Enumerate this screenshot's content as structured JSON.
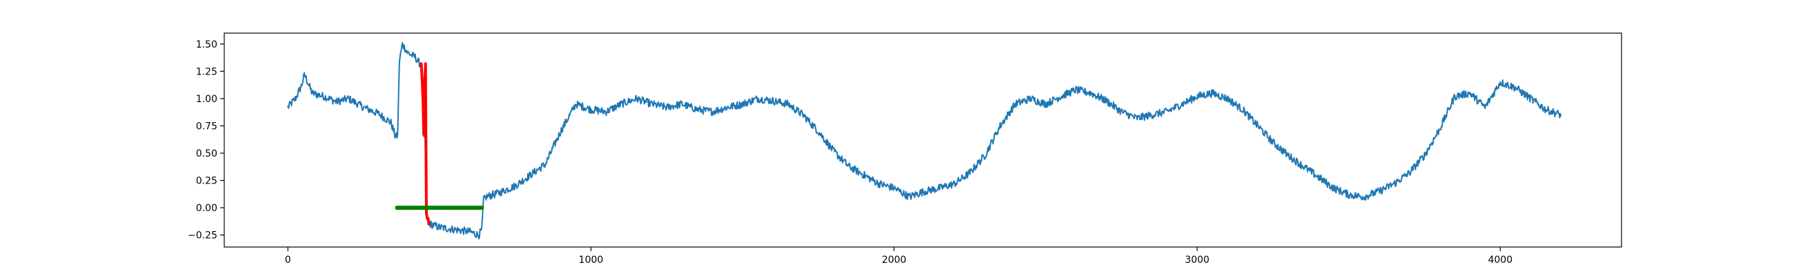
{
  "chart_data": {
    "type": "line",
    "title": "",
    "xlabel": "",
    "ylabel": "",
    "xlim": [
      -210,
      4400
    ],
    "ylim": [
      -0.36,
      1.6
    ],
    "grid": false,
    "legend": "none",
    "x_ticks": [
      0,
      1000,
      2000,
      3000,
      4000
    ],
    "x_tick_labels": [
      "0",
      "1000",
      "2000",
      "3000",
      "4000"
    ],
    "y_ticks": [
      -0.25,
      0.0,
      0.25,
      0.5,
      0.75,
      1.0,
      1.25,
      1.5
    ],
    "y_tick_labels": [
      "−0.25",
      "0.00",
      "0.25",
      "0.50",
      "0.75",
      "1.00",
      "1.25",
      "1.50"
    ],
    "series": [
      {
        "color": "#1f77b4",
        "line_width": 2,
        "noise": 0.035,
        "points": [
          [
            0,
            0.92
          ],
          [
            25,
            1.0
          ],
          [
            45,
            1.12
          ],
          [
            55,
            1.22
          ],
          [
            80,
            1.05
          ],
          [
            120,
            1.02
          ],
          [
            160,
            0.97
          ],
          [
            200,
            1.0
          ],
          [
            250,
            0.92
          ],
          [
            300,
            0.86
          ],
          [
            340,
            0.78
          ],
          [
            355,
            0.65
          ],
          [
            362,
            0.66
          ],
          [
            368,
            1.35
          ],
          [
            378,
            1.5
          ],
          [
            395,
            1.42
          ],
          [
            420,
            1.38
          ],
          [
            440,
            1.3
          ],
          [
            452,
            0.7
          ],
          [
            458,
            -0.08
          ],
          [
            470,
            -0.15
          ],
          [
            500,
            -0.18
          ],
          [
            550,
            -0.2
          ],
          [
            600,
            -0.22
          ],
          [
            630,
            -0.25
          ],
          [
            640,
            -0.2
          ],
          [
            645,
            0.07
          ],
          [
            655,
            0.1
          ],
          [
            700,
            0.14
          ],
          [
            750,
            0.2
          ],
          [
            800,
            0.3
          ],
          [
            850,
            0.4
          ],
          [
            900,
            0.7
          ],
          [
            950,
            0.95
          ],
          [
            1000,
            0.9
          ],
          [
            1050,
            0.88
          ],
          [
            1100,
            0.95
          ],
          [
            1150,
            1.0
          ],
          [
            1200,
            0.95
          ],
          [
            1250,
            0.92
          ],
          [
            1300,
            0.95
          ],
          [
            1350,
            0.9
          ],
          [
            1400,
            0.88
          ],
          [
            1450,
            0.92
          ],
          [
            1500,
            0.95
          ],
          [
            1550,
            1.0
          ],
          [
            1600,
            0.98
          ],
          [
            1650,
            0.95
          ],
          [
            1700,
            0.85
          ],
          [
            1750,
            0.7
          ],
          [
            1800,
            0.52
          ],
          [
            1850,
            0.38
          ],
          [
            1900,
            0.3
          ],
          [
            1950,
            0.22
          ],
          [
            2000,
            0.18
          ],
          [
            2050,
            0.1
          ],
          [
            2100,
            0.15
          ],
          [
            2150,
            0.18
          ],
          [
            2200,
            0.22
          ],
          [
            2250,
            0.32
          ],
          [
            2300,
            0.48
          ],
          [
            2350,
            0.75
          ],
          [
            2400,
            0.95
          ],
          [
            2450,
            1.0
          ],
          [
            2500,
            0.95
          ],
          [
            2550,
            1.02
          ],
          [
            2600,
            1.08
          ],
          [
            2650,
            1.05
          ],
          [
            2700,
            0.98
          ],
          [
            2750,
            0.88
          ],
          [
            2800,
            0.82
          ],
          [
            2850,
            0.85
          ],
          [
            2900,
            0.88
          ],
          [
            2950,
            0.95
          ],
          [
            3000,
            1.02
          ],
          [
            3050,
            1.05
          ],
          [
            3100,
            1.0
          ],
          [
            3150,
            0.9
          ],
          [
            3200,
            0.75
          ],
          [
            3250,
            0.6
          ],
          [
            3300,
            0.48
          ],
          [
            3350,
            0.38
          ],
          [
            3400,
            0.28
          ],
          [
            3450,
            0.18
          ],
          [
            3500,
            0.12
          ],
          [
            3550,
            0.1
          ],
          [
            3600,
            0.15
          ],
          [
            3650,
            0.22
          ],
          [
            3700,
            0.32
          ],
          [
            3750,
            0.48
          ],
          [
            3800,
            0.72
          ],
          [
            3850,
            1.02
          ],
          [
            3900,
            1.05
          ],
          [
            3950,
            0.92
          ],
          [
            4000,
            1.15
          ],
          [
            4050,
            1.1
          ],
          [
            4100,
            1.0
          ],
          [
            4150,
            0.9
          ],
          [
            4200,
            0.85
          ]
        ]
      },
      {
        "color": "#ff0000",
        "line_width": 4,
        "noise": 0,
        "points": [
          [
            440,
            1.32
          ],
          [
            443,
            1.18
          ],
          [
            446,
            0.95
          ],
          [
            448,
            0.68
          ],
          [
            450,
            0.66
          ],
          [
            452,
            1.15
          ],
          [
            454,
            1.32
          ],
          [
            456,
            0.4
          ],
          [
            457,
            -0.05
          ],
          [
            460,
            -0.1
          ],
          [
            463,
            -0.1
          ],
          [
            465,
            -0.15
          ]
        ]
      },
      {
        "color": "#008000",
        "line_width": 6,
        "noise": 0,
        "points": [
          [
            360,
            0.0
          ],
          [
            640,
            0.0
          ]
        ]
      }
    ]
  }
}
